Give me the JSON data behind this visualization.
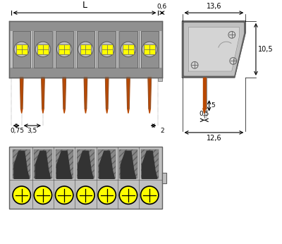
{
  "bg_color": "#ffffff",
  "gray_body": "#c0c0c0",
  "gray_light": "#d4d4d4",
  "gray_dark": "#909090",
  "gray_darker": "#606060",
  "black": "#000000",
  "yellow": "#ffff00",
  "orange_pin": "#b84800",
  "n_pins": 7,
  "labels": {
    "L": "L",
    "dim_06": "0,6",
    "dim_136": "13,6",
    "dim_105": "10,5",
    "dim_075": "0,75",
    "dim_35": "3,5",
    "dim_2": "2",
    "dim_05": "0,5",
    "dim_5": "5",
    "dim_126": "12,6"
  }
}
